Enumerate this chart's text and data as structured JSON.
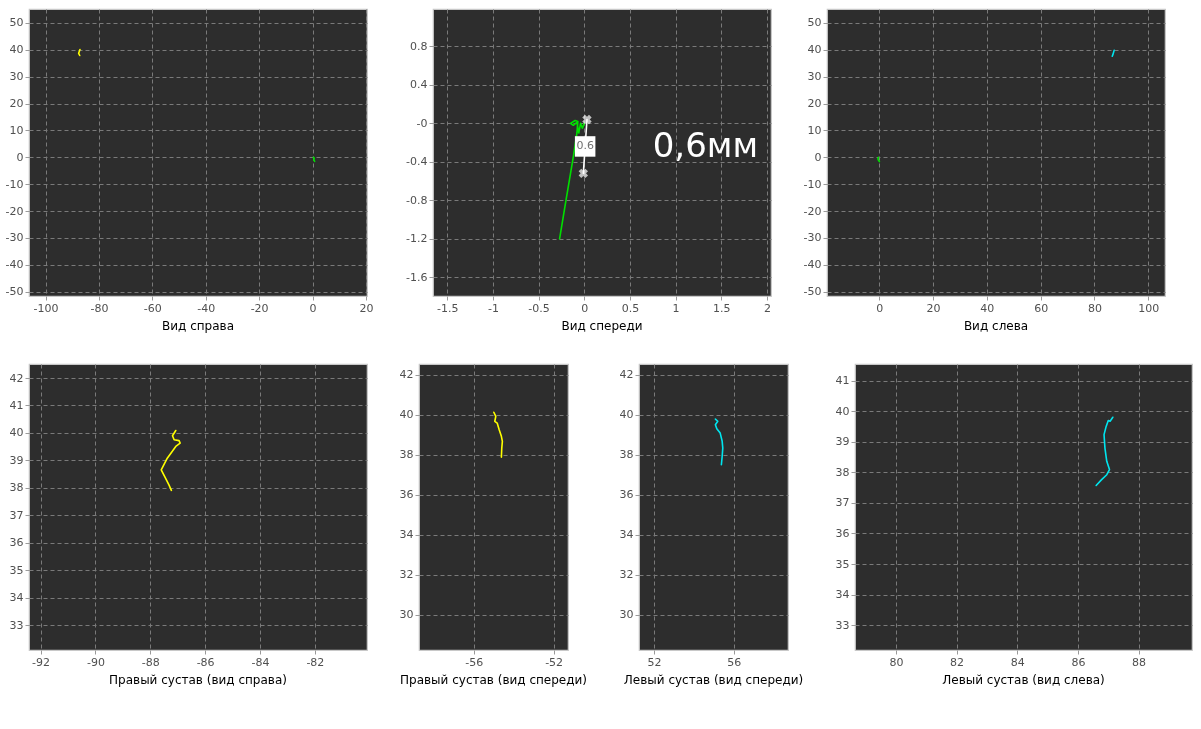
{
  "chart_data": [
    {
      "type": "line",
      "title": "Вид справа",
      "xlim": [
        -106.2,
        20.4
      ],
      "ylim": [
        -51.6,
        55.2
      ],
      "xticks": [
        -100,
        -80,
        -60,
        -40,
        -20,
        0,
        20
      ],
      "yticks": [
        -50,
        -40,
        -30,
        -20,
        -10,
        0,
        10,
        20,
        30,
        40,
        50
      ],
      "grid": true,
      "series": [
        {
          "color": "#ffff00",
          "x": [
            -87.1,
            -87.6,
            -87.2
          ],
          "values": [
            40.1,
            38.7,
            37.9
          ]
        },
        {
          "color": "#00e000",
          "x": [
            0.3,
            0.6,
            0.5,
            0.8
          ],
          "values": [
            0.0,
            -0.3,
            -1.0,
            -1.5
          ]
        }
      ]
    },
    {
      "type": "line",
      "title": "Вид спереди",
      "xlim": [
        -1.656,
        2.045
      ],
      "ylim": [
        -1.795,
        1.189
      ],
      "xticks": [
        -1.5,
        -1,
        -0.5,
        0,
        0.5,
        1,
        1.5,
        2
      ],
      "yticks": [
        0.8,
        0.4,
        {
          "value": 0,
          "label": "-0"
        },
        -0.4,
        -0.8,
        -1.2,
        -1.6
      ],
      "grid": true,
      "annotations": [
        {
          "text": "0.6",
          "x": 0.01,
          "y": -0.24
        },
        "0,6мм"
      ],
      "series": [
        {
          "color": "#00e000",
          "x": [
            -0.27,
            -0.2,
            -0.12,
            -0.08,
            -0.07,
            -0.1,
            -0.15,
            -0.12,
            -0.08,
            -0.06,
            -0.04,
            -0.02,
            0.0
          ],
          "values": [
            -1.2,
            -0.8,
            -0.35,
            -0.1,
            0.02,
            0.03,
            0.0,
            -0.02,
            0.01,
            -0.1,
            0.0,
            -0.05,
            0.0
          ]
        },
        {
          "color": "#ffffff",
          "marker": "cross",
          "x": [
            0.03,
            -0.01
          ],
          "values": [
            0.04,
            -0.52
          ]
        }
      ]
    },
    {
      "type": "line",
      "title": "Вид слева",
      "xlim": [
        -19.4,
        106.2
      ],
      "ylim": [
        -51.6,
        55.2
      ],
      "xticks": [
        0,
        20,
        40,
        60,
        80,
        100
      ],
      "yticks": [
        -50,
        -40,
        -30,
        -20,
        -10,
        0,
        10,
        20,
        30,
        40,
        50
      ],
      "grid": true,
      "series": [
        {
          "color": "#00e5ee",
          "x": [
            87.3,
            86.9,
            86.6
          ],
          "values": [
            39.8,
            38.4,
            37.6
          ]
        },
        {
          "color": "#00e000",
          "x": [
            -0.3,
            -0.5,
            -0.2,
            0.1
          ],
          "values": [
            0.0,
            -0.5,
            -1.2,
            -1.6
          ]
        }
      ]
    },
    {
      "type": "line",
      "title": "Правый сустав (вид справа)",
      "xlim": [
        -92.42,
        -80.1
      ],
      "ylim": [
        32.1,
        42.51
      ],
      "xticks": [
        -92,
        -90,
        -88,
        -86,
        -84,
        -82
      ],
      "yticks": [
        33,
        34,
        35,
        36,
        37,
        38,
        39,
        40,
        41,
        42
      ],
      "grid": true,
      "series": [
        {
          "color": "#ffff00",
          "x": [
            -87.07,
            -87.19,
            -87.13,
            -86.95,
            -86.91,
            -87.07,
            -87.38,
            -87.6,
            -87.44,
            -87.32,
            -87.23
          ],
          "values": [
            40.09,
            39.9,
            39.75,
            39.72,
            39.63,
            39.51,
            39.08,
            38.66,
            38.35,
            38.11,
            37.91
          ]
        }
      ]
    },
    {
      "type": "line",
      "title": "Правый сустав (вид спереди)",
      "xlim": [
        -58.75,
        -51.28
      ],
      "ylim": [
        28.25,
        42.53
      ],
      "xticks": [
        -56,
        -52
      ],
      "yticks": [
        30,
        32,
        34,
        36,
        38,
        40,
        42
      ],
      "grid": true,
      "series": [
        {
          "color": "#ffff00",
          "x": [
            -55.0,
            -54.9,
            -54.95,
            -54.83,
            -54.73,
            -54.62,
            -54.57,
            -54.6,
            -54.62
          ],
          "values": [
            40.12,
            39.92,
            39.67,
            39.58,
            39.25,
            38.92,
            38.67,
            38.33,
            37.88
          ]
        }
      ]
    },
    {
      "type": "line",
      "title": "Левый сустав (вид спереди)",
      "xlim": [
        51.25,
        58.72
      ],
      "ylim": [
        28.25,
        42.53
      ],
      "xticks": [
        52,
        56
      ],
      "yticks": [
        30,
        32,
        34,
        36,
        38,
        40,
        42
      ],
      "grid": true,
      "series": [
        {
          "color": "#00e5ee",
          "x": [
            55.08,
            55.2,
            55.08,
            55.15,
            55.32,
            55.42,
            55.45,
            55.42,
            55.38
          ],
          "values": [
            39.78,
            39.67,
            39.5,
            39.3,
            39.08,
            38.67,
            38.33,
            37.92,
            37.5
          ]
        }
      ]
    },
    {
      "type": "line",
      "title": "Левый сустав (вид слева)",
      "xlim": [
        78.65,
        89.76
      ],
      "ylim": [
        32.19,
        41.54
      ],
      "xticks": [
        80,
        82,
        84,
        86,
        88
      ],
      "yticks": [
        33,
        34,
        35,
        36,
        37,
        38,
        39,
        40,
        41
      ],
      "grid": true,
      "series": [
        {
          "color": "#00e5ee",
          "x": [
            87.15,
            87.06,
            87.0,
            86.93,
            86.86,
            86.89,
            86.95,
            87.04,
            86.95,
            86.78,
            86.6
          ],
          "values": [
            39.8,
            39.67,
            39.69,
            39.5,
            39.23,
            38.79,
            38.36,
            38.09,
            37.92,
            37.76,
            37.57
          ]
        }
      ]
    }
  ]
}
